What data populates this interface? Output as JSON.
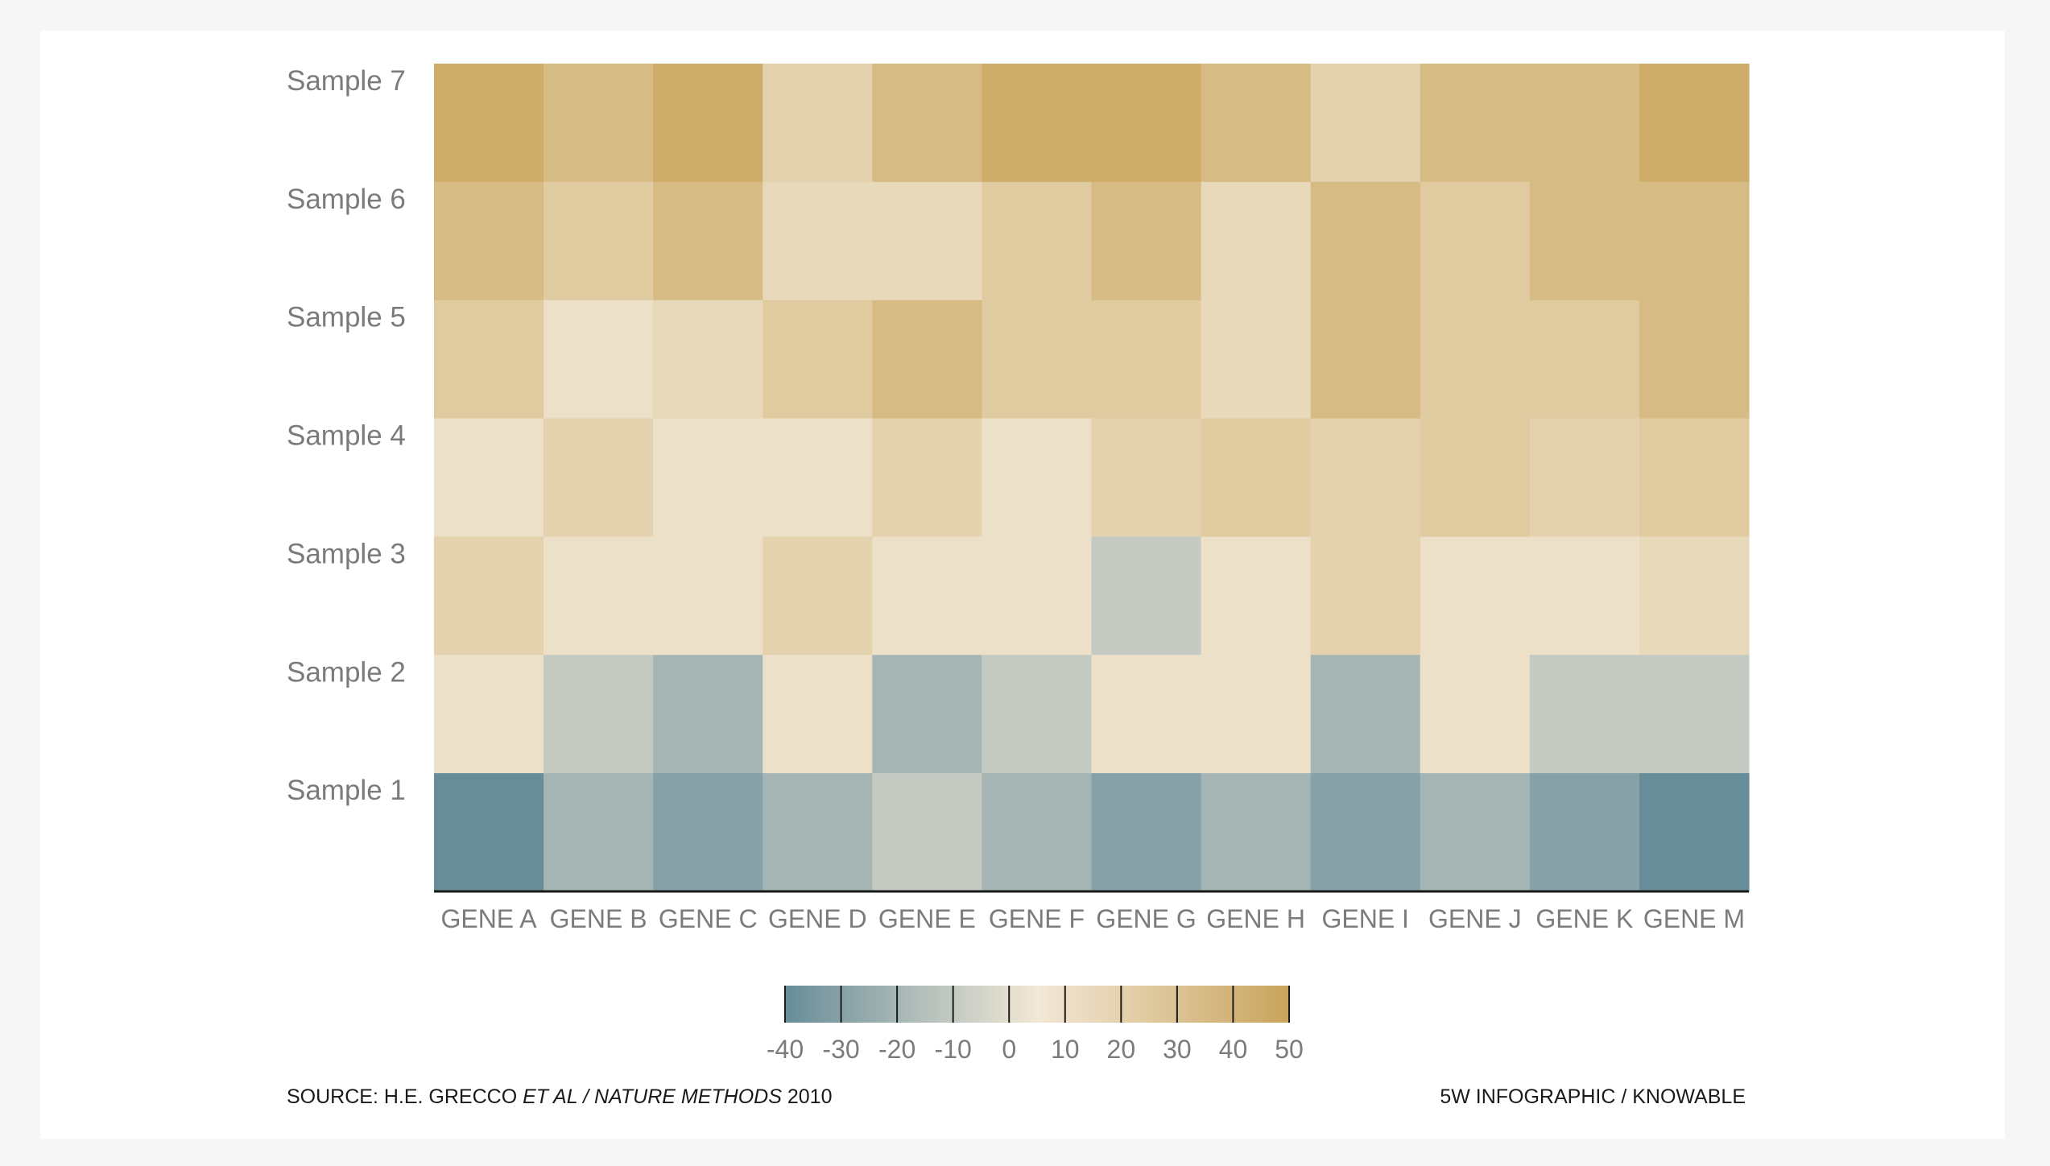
{
  "chart_data": {
    "type": "heatmap",
    "title": "",
    "xlabel": "",
    "ylabel": "",
    "columns": [
      "GENE A",
      "GENE B",
      "GENE C",
      "GENE D",
      "GENE E",
      "GENE F",
      "GENE G",
      "GENE H",
      "GENE I",
      "GENE J",
      "GENE K",
      "GENE M"
    ],
    "rows": [
      "Sample 7",
      "Sample 6",
      "Sample 5",
      "Sample 4",
      "Sample 3",
      "Sample 2",
      "Sample 1"
    ],
    "values": [
      [
        45,
        35,
        45,
        20,
        35,
        45,
        45,
        35,
        20,
        35,
        35,
        45
      ],
      [
        35,
        25,
        35,
        15,
        15,
        25,
        35,
        15,
        35,
        25,
        35,
        35
      ],
      [
        25,
        10,
        15,
        25,
        35,
        25,
        25,
        15,
        35,
        25,
        25,
        35
      ],
      [
        10,
        20,
        10,
        10,
        20,
        10,
        20,
        25,
        20,
        25,
        20,
        25
      ],
      [
        20,
        10,
        10,
        20,
        10,
        10,
        -10,
        10,
        20,
        10,
        10,
        15
      ],
      [
        10,
        -10,
        -20,
        10,
        -20,
        -10,
        10,
        10,
        -20,
        10,
        -10,
        -10
      ],
      [
        -40,
        -20,
        -30,
        -20,
        -10,
        -20,
        -30,
        -20,
        -30,
        -20,
        -30,
        -40
      ]
    ],
    "colorbar": {
      "ticks": [
        -40,
        -30,
        -20,
        -10,
        0,
        10,
        20,
        30,
        40,
        50
      ],
      "range": [
        -40,
        50
      ],
      "low_color": "#678d99",
      "mid_color": "#f2e8d6",
      "high_color": "#c9a45c"
    }
  },
  "footer": {
    "source_prefix": "SOURCE: H.E. GRECCO ",
    "source_italic": "ET AL / NATURE METHODS",
    "source_year": " 2010",
    "credit": "5W INFOGRAPHIC / KNOWABLE"
  }
}
